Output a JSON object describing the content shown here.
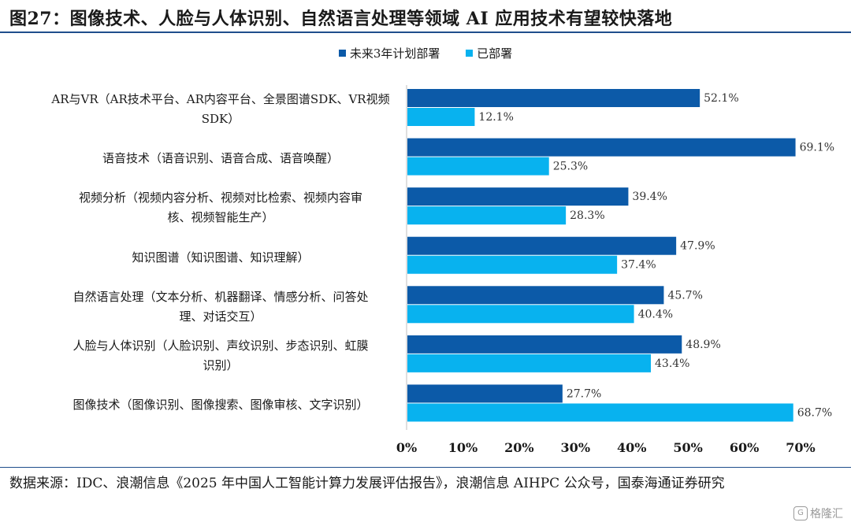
{
  "title": "图27：图像技术、人脸与人体识别、自然语言处理等领域 AI 应用技术有望较快落地",
  "source": "数据来源：IDC、浪潮信息《2025 年中国人工智能计算力发展评估报告》，浪潮信息 AIHPC 公众号，国泰海通证券研究",
  "watermark": "格隆汇",
  "colors": {
    "planned": "#0c5aa8",
    "deployed": "#08b2ef",
    "axis": "#bfbfbf",
    "rule": "#1f4e8c"
  },
  "chart_data": {
    "type": "bar",
    "orientation": "horizontal",
    "title": "",
    "xlabel": "",
    "ylabel": "",
    "xlim": [
      0,
      70
    ],
    "xticks": [
      "0%",
      "10%",
      "20%",
      "30%",
      "40%",
      "50%",
      "60%",
      "70%"
    ],
    "xtick_values": [
      0,
      10,
      20,
      30,
      40,
      50,
      60,
      70
    ],
    "legend_position": "top-center",
    "categories": [
      [
        "AR与VR（AR技术平台、AR内容平台、全景图谱SDK、VR视频",
        "SDK）"
      ],
      [
        "语音技术（语音识别、语音合成、语音唤醒）"
      ],
      [
        "视频分析（视频内容分析、视频对比检索、视频内容审",
        "核、视频智能生产）"
      ],
      [
        "知识图谱（知识图谱、知识理解）"
      ],
      [
        "自然语言处理（文本分析、机器翻译、情感分析、问答处",
        "理、对话交互）"
      ],
      [
        "人脸与人体识别（人脸识别、声纹识别、步态识别、虹膜",
        "识别）"
      ],
      [
        "图像技术（图像识别、图像搜索、图像审核、文字识别）"
      ]
    ],
    "series": [
      {
        "name": "未来3年计划部署",
        "values": [
          52.1,
          69.1,
          39.4,
          47.9,
          45.7,
          48.9,
          27.7
        ],
        "labels": [
          "52.1%",
          "69.1%",
          "39.4%",
          "47.9%",
          "45.7%",
          "48.9%",
          "27.7%"
        ]
      },
      {
        "name": "已部署",
        "values": [
          12.1,
          25.3,
          28.3,
          37.4,
          40.4,
          43.4,
          68.7
        ],
        "labels": [
          "12.1%",
          "25.3%",
          "28.3%",
          "37.4%",
          "40.4%",
          "43.4%",
          "68.7%"
        ]
      }
    ]
  }
}
